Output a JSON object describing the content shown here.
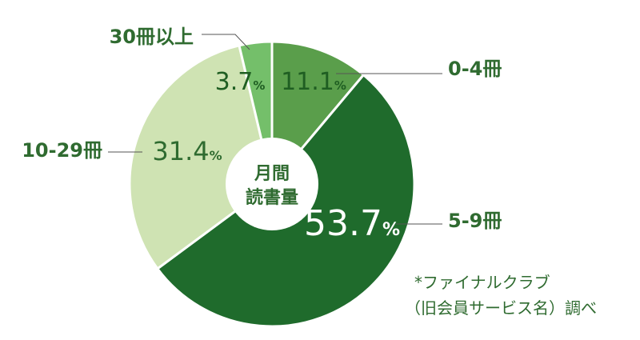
{
  "chart_data": {
    "type": "pie",
    "categories": [
      "0-4冊",
      "5-9冊",
      "10-29冊",
      "30冊以上"
    ],
    "values": [
      11.1,
      53.7,
      31.4,
      3.7
    ],
    "value_labels": [
      "11.1",
      "53.7",
      "31.4",
      "3.7"
    ],
    "unit": "%",
    "center_label_lines": [
      "月間",
      "読書量"
    ],
    "colors": [
      "#5a9e4b",
      "#1f6b2c",
      "#cfe3b3",
      "#74bf6a"
    ],
    "value_label_colors": [
      "#1f5e22",
      "#ffffff",
      "#2f6b30",
      "#1f5e22"
    ]
  },
  "note": {
    "line1": "*ファイナルクラブ",
    "line2": "（旧会員サービス名）調べ"
  }
}
